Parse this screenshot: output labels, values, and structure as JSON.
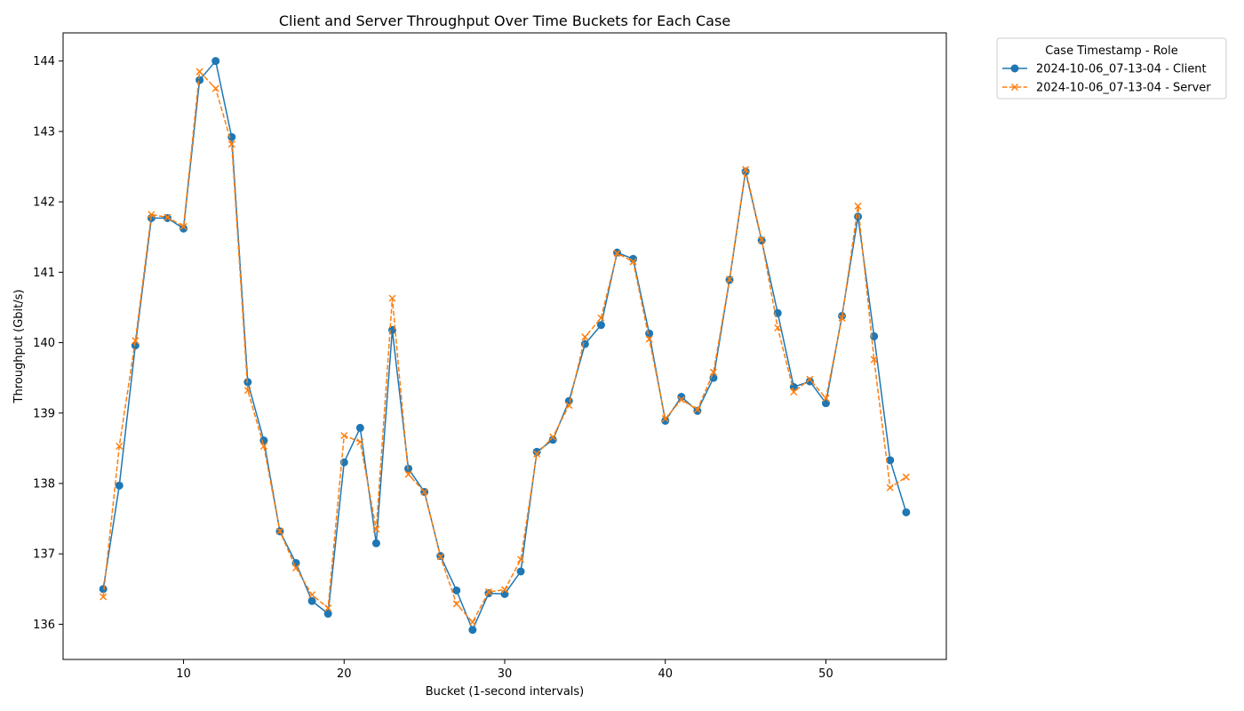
{
  "chart_data": {
    "type": "line",
    "title": "Client and Server Throughput Over Time Buckets for Each Case",
    "xlabel": "Bucket (1-second intervals)",
    "ylabel": "Throughput (Gbit/s)",
    "xlim": [
      2.5,
      57.5
    ],
    "ylim": [
      135.5,
      144.4
    ],
    "xticks": [
      10,
      20,
      30,
      40,
      50
    ],
    "yticks": [
      136,
      137,
      138,
      139,
      140,
      141,
      142,
      143,
      144
    ],
    "legend": {
      "title": "Case Timestamp - Role",
      "placement": "outside-top-right"
    },
    "grid": false,
    "series": [
      {
        "name": "2024-10-06_07-13-04 - Client",
        "color": "#1f77b4",
        "marker": "circle",
        "linestyle": "solid",
        "x": [
          5,
          6,
          7,
          8,
          9,
          10,
          11,
          12,
          13,
          14,
          15,
          16,
          17,
          18,
          19,
          20,
          21,
          22,
          23,
          24,
          25,
          26,
          27,
          28,
          29,
          30,
          31,
          32,
          33,
          34,
          35,
          36,
          37,
          38,
          39,
          40,
          41,
          42,
          43,
          44,
          45,
          46,
          47,
          48,
          49,
          50,
          51,
          52,
          53,
          54,
          55
        ],
        "y": [
          136.5,
          137.97,
          139.96,
          141.77,
          141.77,
          141.62,
          143.73,
          144.0,
          142.92,
          139.44,
          138.61,
          137.32,
          136.87,
          136.33,
          136.15,
          138.3,
          138.79,
          137.15,
          140.18,
          138.21,
          137.88,
          136.97,
          136.48,
          135.92,
          136.44,
          136.43,
          136.75,
          138.45,
          138.62,
          139.17,
          139.98,
          140.25,
          141.28,
          141.19,
          140.13,
          138.89,
          139.23,
          139.03,
          139.5,
          140.89,
          142.43,
          141.45,
          140.42,
          139.37,
          139.45,
          139.14,
          140.38,
          141.79,
          140.09,
          138.33,
          137.59
        ]
      },
      {
        "name": "2024-10-06_07-13-04 - Server",
        "color": "#ff7f0e",
        "marker": "x",
        "linestyle": "dashed",
        "x": [
          5,
          6,
          7,
          8,
          9,
          10,
          11,
          12,
          13,
          14,
          15,
          16,
          17,
          18,
          19,
          20,
          21,
          22,
          23,
          24,
          25,
          26,
          27,
          28,
          29,
          30,
          31,
          32,
          33,
          34,
          35,
          36,
          37,
          38,
          39,
          40,
          41,
          42,
          43,
          44,
          45,
          46,
          47,
          48,
          49,
          50,
          51,
          52,
          53,
          54,
          55
        ],
        "y": [
          136.39,
          138.53,
          140.03,
          141.82,
          141.78,
          141.65,
          143.85,
          143.61,
          142.82,
          139.32,
          138.53,
          137.32,
          136.8,
          136.42,
          136.23,
          138.68,
          138.59,
          137.35,
          140.63,
          138.13,
          137.88,
          136.96,
          136.29,
          136.03,
          136.46,
          136.49,
          136.92,
          138.42,
          138.66,
          139.11,
          140.08,
          140.35,
          141.27,
          141.15,
          140.05,
          138.92,
          139.19,
          139.05,
          139.58,
          140.9,
          142.46,
          141.46,
          140.21,
          139.3,
          139.48,
          139.21,
          140.35,
          141.94,
          139.76,
          137.94,
          138.09
        ]
      }
    ]
  }
}
